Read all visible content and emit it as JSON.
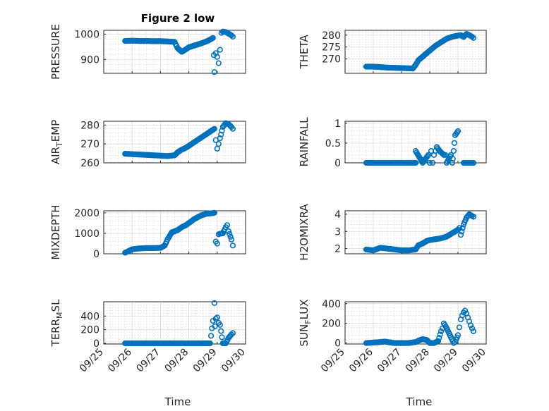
{
  "title": "Figure 2 low",
  "xlabel": "Time",
  "colors": {
    "marker": "#0072BD",
    "axes": "#262626"
  },
  "x_ticks": [
    "09/25",
    "09/26",
    "09/27",
    "09/28",
    "09/29",
    "09/30"
  ],
  "x_range_days": [
    25,
    30
  ],
  "chart_data": [
    {
      "type": "scatter",
      "title": "Figure 2 low",
      "ylabel": "PRESSURE",
      "ylim": [
        845,
        1015
      ],
      "yticks": [
        900,
        1000
      ],
      "grid": true,
      "series": [
        {
          "x": [
            25.75,
            26.0,
            26.25,
            26.5,
            26.75,
            27.0,
            27.25,
            27.5,
            27.6,
            27.75,
            27.9,
            28.0,
            28.2,
            28.4,
            28.55,
            28.7,
            28.85,
            28.88,
            28.9,
            28.95,
            29.0,
            29.05,
            29.1,
            29.15,
            29.2,
            29.3,
            29.4,
            29.5,
            29.55
          ],
          "y": [
            973,
            974,
            973,
            973,
            972,
            972,
            971,
            969,
            945,
            930,
            940,
            948,
            955,
            962,
            968,
            975,
            985,
            917,
            850,
            925,
            910,
            885,
            938,
            1005,
            1010,
            1008,
            1002,
            995,
            990
          ]
        }
      ]
    },
    {
      "type": "scatter",
      "ylabel": "THETA",
      "ylim": [
        264,
        282
      ],
      "yticks": [
        270,
        275,
        280
      ],
      "grid": true,
      "series": [
        {
          "x": [
            25.75,
            26.0,
            26.25,
            26.5,
            26.75,
            27.0,
            27.25,
            27.4,
            27.5,
            27.6,
            27.75,
            27.9,
            28.0,
            28.2,
            28.4,
            28.6,
            28.8,
            29.0,
            29.1,
            29.2,
            29.3,
            29.4,
            29.5,
            29.55
          ],
          "y": [
            266.8,
            266.8,
            266.6,
            266.4,
            266.3,
            266.2,
            266.1,
            266.0,
            267.5,
            269.5,
            271.0,
            272.5,
            273.5,
            275.5,
            277.0,
            278.5,
            279.3,
            279.8,
            280.0,
            279.2,
            280.5,
            280.0,
            279.3,
            278.8
          ]
        }
      ]
    },
    {
      "type": "scatter",
      "ylabel": "AIR_TEMP",
      "ylim": [
        260,
        282
      ],
      "yticks": [
        260,
        270,
        280
      ],
      "grid": true,
      "series": [
        {
          "x": [
            25.75,
            26.0,
            26.25,
            26.5,
            26.75,
            27.0,
            27.25,
            27.5,
            27.6,
            27.75,
            27.9,
            28.0,
            28.2,
            28.4,
            28.6,
            28.8,
            28.9,
            28.95,
            29.0,
            29.05,
            29.1,
            29.2,
            29.3,
            29.4,
            29.5,
            29.55
          ],
          "y": [
            264.8,
            264.6,
            264.4,
            264.2,
            264.0,
            263.8,
            263.6,
            264.0,
            265.5,
            267.0,
            268.0,
            269.0,
            271.0,
            273.0,
            275.0,
            277.0,
            278.0,
            272.0,
            267.5,
            270.0,
            273.0,
            279.0,
            281.0,
            280.5,
            279.0,
            278.0
          ]
        }
      ]
    },
    {
      "type": "scatter",
      "ylabel": "RAINFALL",
      "ylim": [
        0,
        1.05
      ],
      "yticks": [
        0,
        0.5,
        1
      ],
      "grid": true,
      "series": [
        {
          "x": [
            25.75,
            26.0,
            26.25,
            26.5,
            26.75,
            27.0,
            27.25,
            27.5,
            27.5,
            27.75,
            27.95,
            28.0,
            28.05,
            28.1,
            28.15,
            28.2,
            28.25,
            28.35,
            28.5,
            28.55,
            28.6,
            28.75,
            28.8,
            28.82,
            28.9,
            29.0,
            29.2,
            29.4,
            29.5,
            29.55
          ],
          "y": [
            0,
            0,
            0,
            0,
            0,
            0,
            0,
            0,
            0.3,
            0,
            0.2,
            0,
            0.3,
            0,
            0.2,
            0.3,
            0.4,
            0.3,
            0.2,
            0.2,
            0,
            0.2,
            0,
            0.1,
            0.7,
            0.8,
            0,
            0,
            0,
            0
          ]
        }
      ]
    },
    {
      "type": "scatter",
      "ylabel": "MIXDEPTH",
      "ylim": [
        0,
        2100
      ],
      "yticks": [
        0,
        1000,
        2000
      ],
      "grid": true,
      "series": [
        {
          "x": [
            25.75,
            25.9,
            26.0,
            26.25,
            26.5,
            26.75,
            27.0,
            27.15,
            27.25,
            27.4,
            27.6,
            27.75,
            27.9,
            28.0,
            28.2,
            28.4,
            28.6,
            28.8,
            28.9,
            28.95,
            29.0,
            29.05,
            29.1,
            29.2,
            29.3,
            29.35,
            29.4,
            29.5,
            29.55
          ],
          "y": [
            50,
            150,
            220,
            260,
            280,
            280,
            290,
            400,
            700,
            1050,
            1150,
            1300,
            1400,
            1500,
            1700,
            1850,
            1950,
            1980,
            2000,
            600,
            500,
            950,
            980,
            1000,
            1300,
            1400,
            1100,
            700,
            400
          ]
        }
      ]
    },
    {
      "type": "scatter",
      "ylabel": "H2OMIXRA",
      "ylim": [
        1.7,
        4.2
      ],
      "yticks": [
        2,
        3,
        4
      ],
      "grid": true,
      "series": [
        {
          "x": [
            25.75,
            26.0,
            26.25,
            26.5,
            26.75,
            27.0,
            27.25,
            27.5,
            27.6,
            27.75,
            27.9,
            28.0,
            28.2,
            28.4,
            28.6,
            28.8,
            28.9,
            29.0,
            29.05,
            29.1,
            29.2,
            29.3,
            29.4,
            29.5,
            29.55
          ],
          "y": [
            1.95,
            1.9,
            2.05,
            2.0,
            1.95,
            1.9,
            1.9,
            1.95,
            2.2,
            2.3,
            2.45,
            2.5,
            2.55,
            2.6,
            2.7,
            2.9,
            3.0,
            3.1,
            3.2,
            2.8,
            3.4,
            3.8,
            4.0,
            3.9,
            3.85
          ]
        }
      ]
    },
    {
      "type": "scatter",
      "ylabel": "TERR_MSL",
      "ylim": [
        -10,
        610
      ],
      "yticks": [
        0,
        200,
        400
      ],
      "grid": true,
      "series": [
        {
          "x": [
            25.75,
            26.0,
            26.25,
            26.5,
            26.75,
            27.0,
            27.25,
            27.5,
            27.75,
            28.0,
            28.25,
            28.5,
            28.75,
            28.85,
            28.9,
            28.92,
            28.95,
            29.0,
            29.05,
            29.1,
            29.2,
            29.3,
            29.4,
            29.5,
            29.55
          ],
          "y": [
            0,
            0,
            0,
            0,
            0,
            0,
            0,
            0,
            0,
            0,
            0,
            0,
            0,
            330,
            590,
            250,
            360,
            380,
            300,
            270,
            0,
            0,
            80,
            130,
            150
          ]
        }
      ]
    },
    {
      "type": "scatter",
      "ylabel": "SUN_FLUX",
      "ylim": [
        -10,
        420
      ],
      "yticks": [
        0,
        200,
        400
      ],
      "grid": true,
      "series": [
        {
          "x": [
            25.75,
            26.0,
            26.25,
            26.4,
            26.5,
            26.75,
            27.0,
            27.25,
            27.5,
            27.65,
            27.75,
            27.9,
            28.0,
            28.15,
            28.3,
            28.4,
            28.45,
            28.5,
            28.6,
            28.75,
            28.85,
            28.9,
            29.0,
            29.05,
            29.1,
            29.15,
            29.2,
            29.25,
            29.3,
            29.35,
            29.4,
            29.45,
            29.5,
            29.55
          ],
          "y": [
            0,
            5,
            10,
            15,
            10,
            0,
            0,
            0,
            10,
            30,
            40,
            30,
            0,
            0,
            20,
            120,
            150,
            200,
            150,
            60,
            0,
            10,
            80,
            160,
            240,
            280,
            310,
            330,
            300,
            260,
            220,
            180,
            150,
            120
          ]
        }
      ]
    }
  ]
}
